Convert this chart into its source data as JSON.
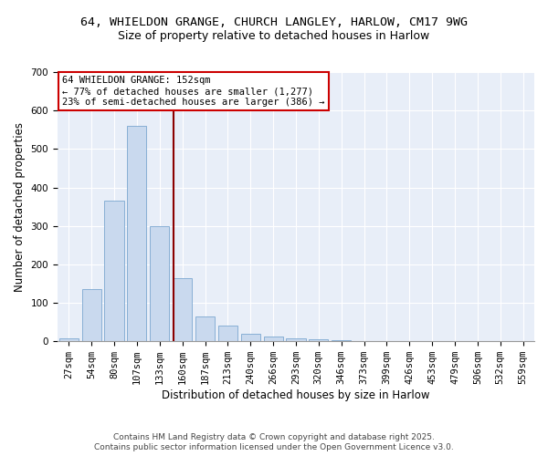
{
  "title1": "64, WHIELDON GRANGE, CHURCH LANGLEY, HARLOW, CM17 9WG",
  "title2": "Size of property relative to detached houses in Harlow",
  "xlabel": "Distribution of detached houses by size in Harlow",
  "ylabel": "Number of detached properties",
  "bar_categories": [
    "27sqm",
    "54sqm",
    "80sqm",
    "107sqm",
    "133sqm",
    "160sqm",
    "187sqm",
    "213sqm",
    "240sqm",
    "266sqm",
    "293sqm",
    "320sqm",
    "346sqm",
    "373sqm",
    "399sqm",
    "426sqm",
    "453sqm",
    "479sqm",
    "506sqm",
    "532sqm",
    "559sqm"
  ],
  "bar_values": [
    8,
    135,
    365,
    560,
    300,
    163,
    65,
    40,
    20,
    13,
    7,
    5,
    2,
    1,
    0,
    0,
    0,
    0,
    0,
    0,
    0
  ],
  "bar_color": "#c9d9ee",
  "bar_edgecolor": "#7ba7d0",
  "vline_x": 4.62,
  "vline_color": "#8b0000",
  "annotation_line1": "64 WHIELDON GRANGE: 152sqm",
  "annotation_line2": "← 77% of detached houses are smaller (1,277)",
  "annotation_line3": "23% of semi-detached houses are larger (386) →",
  "annotation_box_color": "white",
  "annotation_box_edgecolor": "#cc0000",
  "ylim": [
    0,
    700
  ],
  "yticks": [
    0,
    100,
    200,
    300,
    400,
    500,
    600,
    700
  ],
  "background_color": "#e8eef8",
  "grid_color": "white",
  "footer1": "Contains HM Land Registry data © Crown copyright and database right 2025.",
  "footer2": "Contains public sector information licensed under the Open Government Licence v3.0.",
  "title_fontsize": 9.5,
  "subtitle_fontsize": 9,
  "axis_label_fontsize": 8.5,
  "tick_fontsize": 7.5,
  "annotation_fontsize": 7.5,
  "footer_fontsize": 6.5
}
